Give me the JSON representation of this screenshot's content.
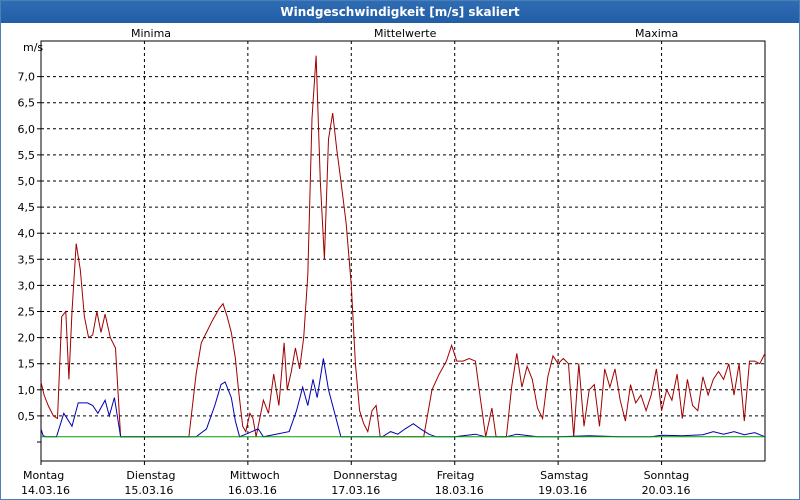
{
  "window": {
    "title": "Windgeschwindigkeit [m/s] skaliert"
  },
  "legend": {
    "minima": {
      "label": "Minima",
      "color": "#00a000"
    },
    "mittel": {
      "label": "Mittelwerte",
      "color": "#0000b4"
    },
    "maxima": {
      "label": "Maxima",
      "color": "#a00000"
    }
  },
  "chart_data": {
    "type": "line",
    "title": "Windgeschwindigkeit [m/s] skaliert",
    "ylabel": "m/s",
    "ylim": [
      0,
      7.5
    ],
    "xlim": [
      0,
      7
    ],
    "grid": true,
    "legend_position": "top",
    "yticks": [
      "0,5",
      "1,0",
      "1,5",
      "2,0",
      "2,5",
      "3,0",
      "3,5",
      "4,0",
      "4,5",
      "5,0",
      "5,5",
      "6,0",
      "6,5",
      "7,0"
    ],
    "ytick_values": [
      0.5,
      1,
      1.5,
      2,
      2.5,
      3,
      3.5,
      4,
      4.5,
      5,
      5.5,
      6,
      6.5,
      7
    ],
    "days": [
      {
        "name": "Montag",
        "date": "14.03.16"
      },
      {
        "name": "Dienstag",
        "date": "15.03.16"
      },
      {
        "name": "Mittwoch",
        "date": "16.03.16"
      },
      {
        "name": "Donnerstag",
        "date": "17.03.16"
      },
      {
        "name": "Freitag",
        "date": "18.03.16"
      },
      {
        "name": "Samstag",
        "date": "19.03.16"
      },
      {
        "name": "Sonntag",
        "date": "20.03.16"
      }
    ],
    "series": [
      {
        "name": "Minima",
        "points": [
          [
            0,
            0.1
          ],
          [
            7,
            0.1
          ]
        ]
      },
      {
        "name": "Mittelwerte",
        "points": [
          [
            0,
            0.25
          ],
          [
            0.02,
            0.12
          ],
          [
            0.05,
            0.1
          ],
          [
            0.15,
            0.1
          ],
          [
            0.22,
            0.55
          ],
          [
            0.3,
            0.3
          ],
          [
            0.36,
            0.75
          ],
          [
            0.45,
            0.75
          ],
          [
            0.5,
            0.7
          ],
          [
            0.55,
            0.55
          ],
          [
            0.62,
            0.8
          ],
          [
            0.66,
            0.5
          ],
          [
            0.71,
            0.85
          ],
          [
            0.77,
            0.1
          ],
          [
            1.5,
            0.1
          ],
          [
            1.6,
            0.25
          ],
          [
            1.68,
            0.7
          ],
          [
            1.74,
            1.1
          ],
          [
            1.78,
            1.15
          ],
          [
            1.84,
            0.85
          ],
          [
            1.88,
            0.4
          ],
          [
            1.92,
            0.1
          ],
          [
            2.1,
            0.25
          ],
          [
            2.15,
            0.1
          ],
          [
            2.4,
            0.2
          ],
          [
            2.47,
            0.6
          ],
          [
            2.53,
            1.05
          ],
          [
            2.58,
            0.7
          ],
          [
            2.63,
            1.2
          ],
          [
            2.67,
            0.85
          ],
          [
            2.73,
            1.6
          ],
          [
            2.78,
            1.0
          ],
          [
            2.84,
            0.55
          ],
          [
            2.9,
            0.1
          ],
          [
            3.3,
            0.1
          ],
          [
            3.38,
            0.2
          ],
          [
            3.45,
            0.15
          ],
          [
            3.52,
            0.25
          ],
          [
            3.6,
            0.35
          ],
          [
            3.67,
            0.25
          ],
          [
            3.75,
            0.15
          ],
          [
            3.82,
            0.1
          ],
          [
            4.0,
            0.1
          ],
          [
            4.2,
            0.15
          ],
          [
            4.3,
            0.1
          ],
          [
            4.5,
            0.1
          ],
          [
            4.6,
            0.15
          ],
          [
            4.8,
            0.1
          ],
          [
            5.0,
            0.1
          ],
          [
            5.3,
            0.12
          ],
          [
            5.6,
            0.1
          ],
          [
            5.9,
            0.1
          ],
          [
            6.0,
            0.13
          ],
          [
            6.2,
            0.12
          ],
          [
            6.4,
            0.14
          ],
          [
            6.5,
            0.2
          ],
          [
            6.6,
            0.15
          ],
          [
            6.7,
            0.2
          ],
          [
            6.8,
            0.14
          ],
          [
            6.9,
            0.18
          ],
          [
            7.0,
            0.1
          ]
        ]
      },
      {
        "name": "Maxima",
        "points": [
          [
            0,
            1.15
          ],
          [
            0.03,
            0.9
          ],
          [
            0.07,
            0.7
          ],
          [
            0.12,
            0.5
          ],
          [
            0.16,
            0.45
          ],
          [
            0.2,
            2.4
          ],
          [
            0.24,
            2.5
          ],
          [
            0.27,
            1.2
          ],
          [
            0.3,
            2.5
          ],
          [
            0.34,
            3.8
          ],
          [
            0.38,
            3.3
          ],
          [
            0.42,
            2.4
          ],
          [
            0.46,
            2.0
          ],
          [
            0.5,
            2.05
          ],
          [
            0.54,
            2.5
          ],
          [
            0.58,
            2.1
          ],
          [
            0.62,
            2.45
          ],
          [
            0.67,
            2.0
          ],
          [
            0.72,
            1.8
          ],
          [
            0.77,
            0.1
          ],
          [
            1.43,
            0.1
          ],
          [
            1.5,
            1.3
          ],
          [
            1.55,
            1.9
          ],
          [
            1.6,
            2.1
          ],
          [
            1.65,
            2.3
          ],
          [
            1.72,
            2.55
          ],
          [
            1.76,
            2.65
          ],
          [
            1.8,
            2.4
          ],
          [
            1.84,
            2.1
          ],
          [
            1.88,
            1.6
          ],
          [
            1.91,
            1.0
          ],
          [
            1.95,
            0.3
          ],
          [
            1.98,
            0.2
          ],
          [
            2.02,
            0.55
          ],
          [
            2.05,
            0.45
          ],
          [
            2.08,
            0.1
          ],
          [
            2.12,
            0.5
          ],
          [
            2.15,
            0.8
          ],
          [
            2.2,
            0.55
          ],
          [
            2.25,
            1.3
          ],
          [
            2.3,
            0.7
          ],
          [
            2.35,
            1.9
          ],
          [
            2.38,
            1.0
          ],
          [
            2.42,
            1.35
          ],
          [
            2.46,
            1.8
          ],
          [
            2.5,
            1.4
          ],
          [
            2.54,
            2.0
          ],
          [
            2.58,
            3.2
          ],
          [
            2.62,
            6.2
          ],
          [
            2.66,
            7.4
          ],
          [
            2.7,
            5.0
          ],
          [
            2.74,
            3.5
          ],
          [
            2.78,
            5.8
          ],
          [
            2.82,
            6.3
          ],
          [
            2.86,
            5.6
          ],
          [
            2.9,
            5.0
          ],
          [
            2.95,
            4.2
          ],
          [
            3.0,
            3.0
          ],
          [
            3.04,
            1.5
          ],
          [
            3.08,
            0.6
          ],
          [
            3.12,
            0.35
          ],
          [
            3.16,
            0.2
          ],
          [
            3.2,
            0.6
          ],
          [
            3.24,
            0.7
          ],
          [
            3.28,
            0.1
          ],
          [
            3.7,
            0.1
          ],
          [
            3.78,
            1.0
          ],
          [
            3.85,
            1.3
          ],
          [
            3.92,
            1.55
          ],
          [
            3.97,
            1.85
          ],
          [
            4.02,
            1.55
          ],
          [
            4.08,
            1.55
          ],
          [
            4.14,
            1.6
          ],
          [
            4.2,
            1.55
          ],
          [
            4.25,
            0.8
          ],
          [
            4.3,
            0.1
          ],
          [
            4.36,
            0.65
          ],
          [
            4.4,
            0.1
          ],
          [
            4.5,
            0.1
          ],
          [
            4.55,
            1.05
          ],
          [
            4.6,
            1.7
          ],
          [
            4.65,
            1.05
          ],
          [
            4.7,
            1.45
          ],
          [
            4.75,
            1.2
          ],
          [
            4.8,
            0.65
          ],
          [
            4.85,
            0.45
          ],
          [
            4.9,
            1.25
          ],
          [
            4.95,
            1.65
          ],
          [
            5.0,
            1.5
          ],
          [
            5.05,
            1.6
          ],
          [
            5.1,
            1.5
          ],
          [
            5.15,
            0.1
          ],
          [
            5.2,
            1.5
          ],
          [
            5.25,
            0.3
          ],
          [
            5.3,
            1.0
          ],
          [
            5.35,
            1.1
          ],
          [
            5.4,
            0.3
          ],
          [
            5.45,
            1.4
          ],
          [
            5.5,
            1.05
          ],
          [
            5.55,
            1.4
          ],
          [
            5.6,
            0.8
          ],
          [
            5.65,
            0.4
          ],
          [
            5.7,
            1.1
          ],
          [
            5.75,
            0.75
          ],
          [
            5.8,
            0.9
          ],
          [
            5.85,
            0.6
          ],
          [
            5.9,
            0.9
          ],
          [
            5.95,
            1.4
          ],
          [
            6.0,
            0.6
          ],
          [
            6.05,
            1.0
          ],
          [
            6.1,
            0.8
          ],
          [
            6.15,
            1.3
          ],
          [
            6.2,
            0.45
          ],
          [
            6.25,
            1.2
          ],
          [
            6.3,
            0.7
          ],
          [
            6.35,
            0.6
          ],
          [
            6.4,
            1.25
          ],
          [
            6.45,
            0.9
          ],
          [
            6.5,
            1.2
          ],
          [
            6.55,
            1.35
          ],
          [
            6.6,
            1.2
          ],
          [
            6.65,
            1.5
          ],
          [
            6.7,
            0.9
          ],
          [
            6.75,
            1.5
          ],
          [
            6.8,
            0.4
          ],
          [
            6.85,
            1.55
          ],
          [
            6.9,
            1.55
          ],
          [
            6.95,
            1.5
          ],
          [
            7.0,
            1.7
          ]
        ]
      }
    ]
  }
}
